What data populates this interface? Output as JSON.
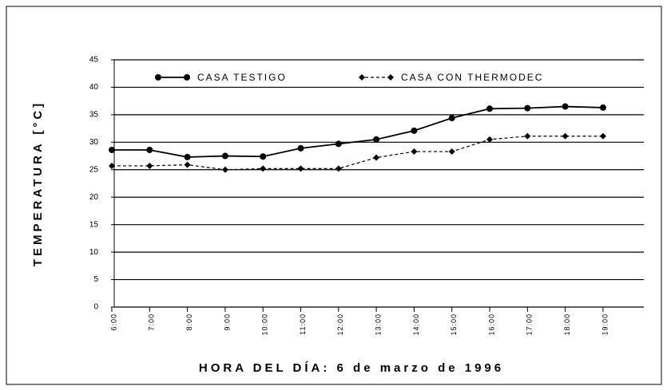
{
  "chart_data": {
    "type": "line",
    "x_label": "HORA DEL DÍA: 6 de marzo de 1996",
    "y_label": "TEMPERATURA [°C]",
    "categories": [
      "6:00",
      "7:00",
      "8:00",
      "9:00",
      "10:00",
      "11:00",
      "12:00",
      "13:00",
      "14:00",
      "15:00",
      "16:00",
      "17:00",
      "18:00",
      "19:00"
    ],
    "series": [
      {
        "name": "CASA TESTIGO",
        "color": "#000000",
        "dash": false,
        "marker": "circle",
        "values": [
          28.6,
          28.6,
          27.3,
          27.5,
          27.4,
          28.9,
          29.7,
          30.5,
          32.1,
          34.4,
          36.1,
          36.2,
          36.5,
          36.3
        ]
      },
      {
        "name": "CASA CON THERMODEC",
        "color": "#000000",
        "dash": true,
        "marker": "diamond",
        "values": [
          25.7,
          25.7,
          25.9,
          25.0,
          25.2,
          25.2,
          25.2,
          27.2,
          28.3,
          28.3,
          30.5,
          31.1,
          31.1,
          31.1
        ]
      }
    ],
    "ylim": [
      0,
      45
    ],
    "yticks": [
      0,
      5,
      10,
      15,
      20,
      25,
      30,
      35,
      40,
      45
    ],
    "grid": true
  }
}
